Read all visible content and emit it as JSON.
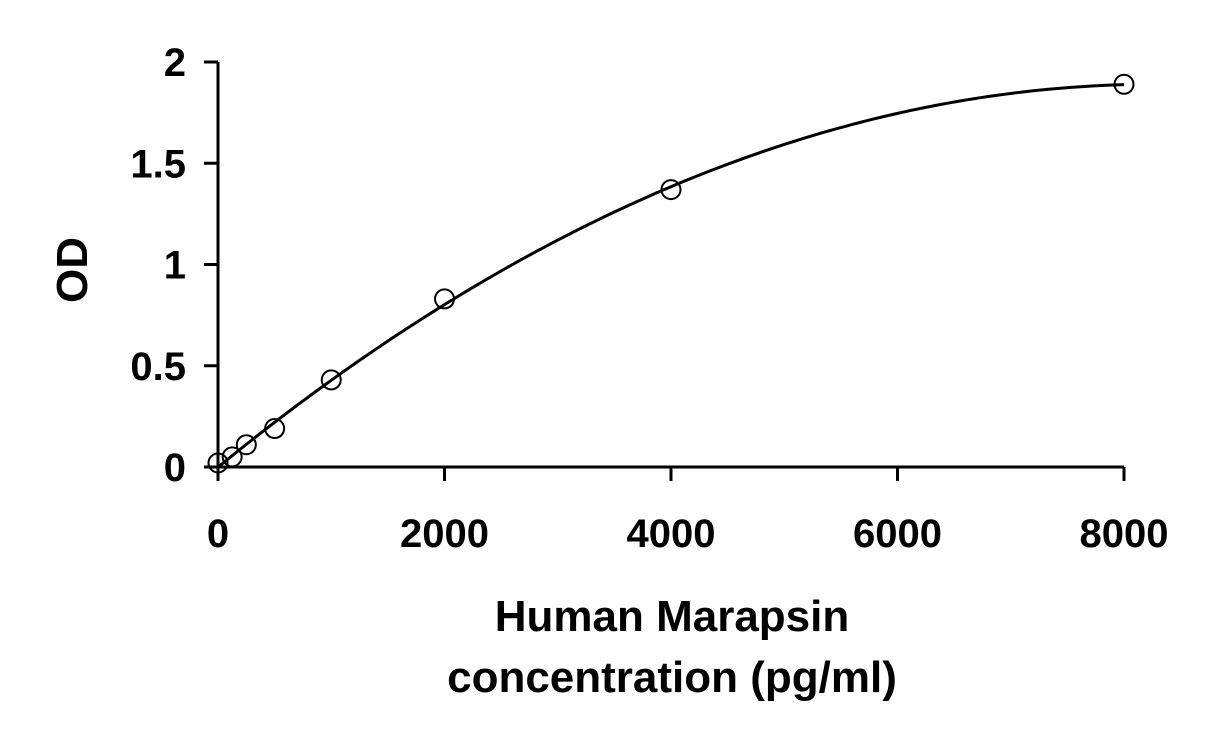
{
  "chart_data": {
    "type": "scatter",
    "title": "",
    "xlabel_lines": [
      "Human Marapsin",
      "concentration (pg/ml)"
    ],
    "ylabel": "OD",
    "xlim": [
      0,
      8000
    ],
    "ylim": [
      0,
      2
    ],
    "x_ticks": [
      0,
      2000,
      4000,
      6000,
      8000
    ],
    "x_tick_labels": [
      "0",
      "2000",
      "4000",
      "6000",
      "8000"
    ],
    "y_ticks": [
      0,
      0.5,
      1,
      1.5,
      2
    ],
    "y_tick_labels": [
      "0",
      "0.5",
      "1",
      "1.5",
      "2"
    ],
    "grid": false,
    "legend": "none",
    "series": [
      {
        "points": [
          {
            "x": 0,
            "y": 0.02
          },
          {
            "x": 125,
            "y": 0.05
          },
          {
            "x": 250,
            "y": 0.11
          },
          {
            "x": 500,
            "y": 0.19
          },
          {
            "x": 1000,
            "y": 0.43
          },
          {
            "x": 2000,
            "y": 0.83
          },
          {
            "x": 4000,
            "y": 1.37
          },
          {
            "x": 8000,
            "y": 1.89
          }
        ],
        "marker": "open-circle",
        "fit_curve": true,
        "color": "#000000"
      }
    ]
  }
}
